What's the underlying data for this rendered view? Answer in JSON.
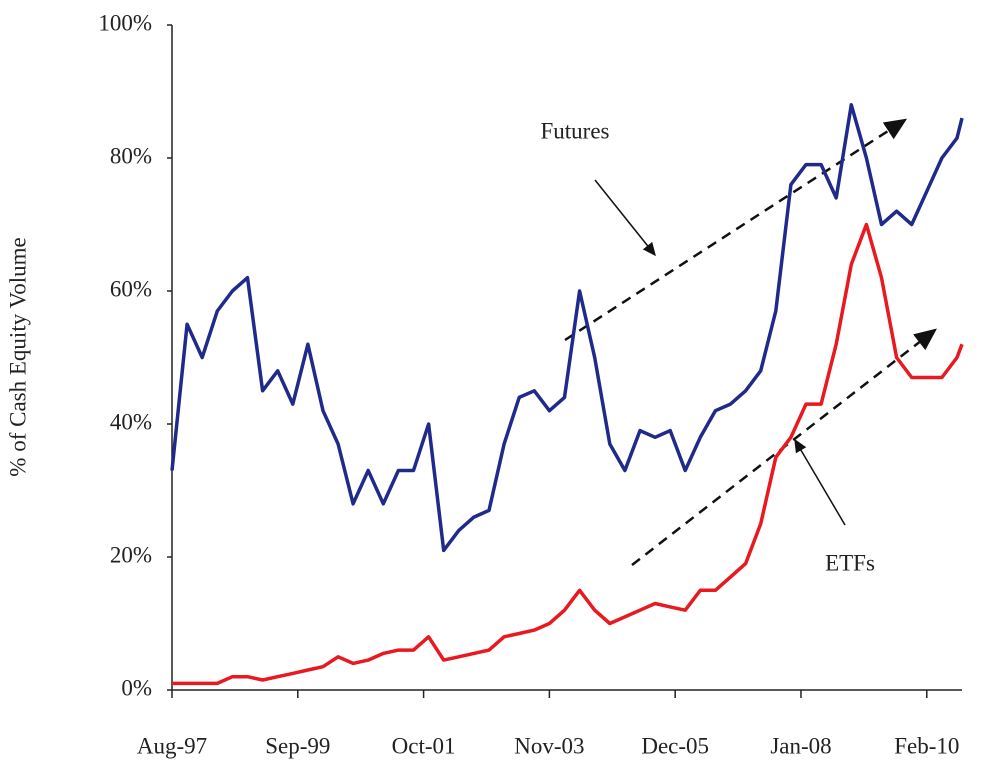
{
  "chart_data": {
    "type": "line",
    "y_label": "% of Cash Equity Volume",
    "annotations": [
      "Futures",
      "ETFs"
    ],
    "x": [
      "1997-08",
      "1997-11",
      "1998-02",
      "1998-05",
      "1998-08",
      "1998-11",
      "1999-02",
      "1999-05",
      "1999-08",
      "1999-11",
      "2000-02",
      "2000-05",
      "2000-08",
      "2000-11",
      "2001-02",
      "2001-05",
      "2001-08",
      "2001-11",
      "2002-02",
      "2002-05",
      "2002-08",
      "2002-11",
      "2003-02",
      "2003-05",
      "2003-08",
      "2003-11",
      "2004-02",
      "2004-05",
      "2004-08",
      "2004-11",
      "2005-02",
      "2005-05",
      "2005-08",
      "2005-11",
      "2006-02",
      "2006-05",
      "2006-08",
      "2006-11",
      "2007-02",
      "2007-05",
      "2007-08",
      "2007-11",
      "2008-02",
      "2008-05",
      "2008-08",
      "2008-11",
      "2009-02",
      "2009-05",
      "2009-08",
      "2009-11",
      "2010-02",
      "2010-05",
      "2010-08",
      "2010-09"
    ],
    "series": [
      {
        "name": "Futures",
        "color": "#1f2a8a",
        "values": [
          33,
          55,
          50,
          57,
          60,
          62,
          45,
          48,
          43,
          52,
          42,
          37,
          28,
          33,
          28,
          33,
          33,
          40,
          21,
          24,
          26,
          27,
          37,
          44,
          45,
          42,
          44,
          60,
          50,
          37,
          33,
          39,
          38,
          39,
          33,
          38,
          42,
          43,
          45,
          48,
          57,
          76,
          79,
          79,
          74,
          88,
          80,
          70,
          72,
          70,
          75,
          80,
          83,
          86
        ]
      },
      {
        "name": "ETFs",
        "color": "#e8191f",
        "values": [
          1,
          1,
          1,
          1,
          2,
          2,
          1.5,
          2,
          2.5,
          3,
          3.5,
          5,
          4,
          4.5,
          5.5,
          6,
          6,
          8,
          4.5,
          5,
          5.5,
          6,
          8,
          8.5,
          9,
          10,
          12,
          15,
          12,
          10,
          11,
          12,
          13,
          12.5,
          12,
          15,
          15,
          17,
          19,
          25,
          35,
          38,
          43,
          43,
          52,
          64,
          70,
          62,
          50,
          47,
          47,
          47,
          50,
          52
        ]
      }
    ],
    "xlim": [
      "1997-08",
      "2010-09"
    ],
    "xticks": [
      {
        "value": "1997-08",
        "label": "Aug-97"
      },
      {
        "value": "1999-09",
        "label": "Sep-99"
      },
      {
        "value": "2001-10",
        "label": "Oct-01"
      },
      {
        "value": "2003-11",
        "label": "Nov-03"
      },
      {
        "value": "2005-12",
        "label": "Dec-05"
      },
      {
        "value": "2008-01",
        "label": "Jan-08"
      },
      {
        "value": "2010-02",
        "label": "Feb-10"
      }
    ],
    "ylim": [
      0,
      100
    ],
    "yticks": [
      {
        "value": 0,
        "label": "0%"
      },
      {
        "value": 20,
        "label": "20%"
      },
      {
        "value": 40,
        "label": "40%"
      },
      {
        "value": 60,
        "label": "60%"
      },
      {
        "value": 80,
        "label": "80%"
      },
      {
        "value": 100,
        "label": "100%"
      }
    ]
  }
}
